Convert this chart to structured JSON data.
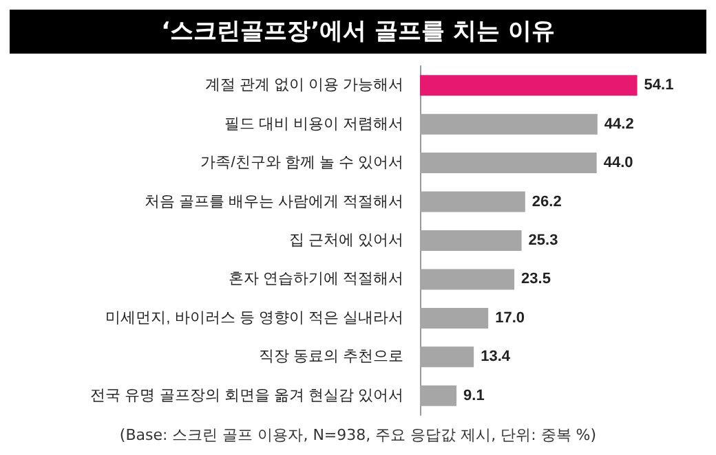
{
  "chart_data": {
    "type": "bar",
    "orientation": "horizontal",
    "title": "‘스크린골프장’에서 골프를 치는 이유",
    "categories": [
      "계절 관계 없이 이용 가능해서",
      "필드 대비 비용이 저렴해서",
      "가족/친구와 함께 놀 수 있어서",
      "처음 골프를 배우는 사람에게 적절해서",
      "집 근처에 있어서",
      "혼자 연습하기에 적절해서",
      "미세먼지, 바이러스 등 영향이 적은 실내라서",
      "직장 동료의 추천으로",
      "전국 유명 골프장의 회면을 옮겨 현실감 있어서"
    ],
    "values": [
      54.1,
      44.2,
      44.0,
      26.2,
      25.3,
      23.5,
      17.0,
      13.4,
      9.1
    ],
    "value_labels": [
      "54.1",
      "44.2",
      "44.0",
      "26.2",
      "25.3",
      "23.5",
      "17.0",
      "13.4",
      "9.1"
    ],
    "colors": [
      "#e6186f",
      "#a6a6a6",
      "#a6a6a6",
      "#a6a6a6",
      "#a6a6a6",
      "#a6a6a6",
      "#a6a6a6",
      "#a6a6a6",
      "#a6a6a6"
    ],
    "annotations": [
      "(Base: 스크린 골프 이용자, N=938, 주요 응답값 제시, 단위: 중복 %)"
    ]
  }
}
